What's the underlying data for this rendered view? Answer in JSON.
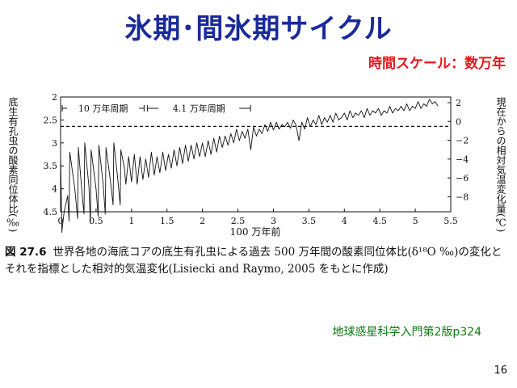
{
  "slide": {
    "title": "氷期･間氷期サイクル",
    "timescale": "時間スケール：数万年",
    "caption_fig": "図 27.6",
    "caption_text": "世界各地の海底コアの底生有孔虫による過去 500 万年間の酸素同位体比(δ¹⁸O ‰)の変化とそれを指標とした相対的気温変化(Lisiecki and Raymo, 2005 をもとに作成)",
    "source": "地球惑星科学入門第2版p324",
    "page_number": "16"
  },
  "chart_data": {
    "type": "line",
    "xlabel": "100 万年前",
    "ylabel_left": "底生有孔虫の酸素同位体比(‰)",
    "ylabel_right": "現在からの相対気温変化量(℃)",
    "xlim": [
      0,
      5.5
    ],
    "ylim_left": [
      4.5,
      2
    ],
    "y_inverted": true,
    "ylim_right": [
      -9.6,
      2.6
    ],
    "x_ticks": [
      "0",
      "0.5",
      "1",
      "1.5",
      "2",
      "2.5",
      "3",
      "3.5",
      "4",
      "4.5",
      "5",
      "5.5"
    ],
    "y_ticks_left": [
      "2",
      "2.5",
      "3",
      "3.5",
      "4",
      "4.5"
    ],
    "y_ticks_right": [
      "2",
      "0",
      "−2",
      "−4",
      "−6",
      "−8"
    ],
    "reference_line": {
      "y": 2.64,
      "style": "dashed"
    },
    "annotations": [
      {
        "label": "10 万年周期",
        "from": 0,
        "to": 1.2
      },
      {
        "label": "4.1 万年周期",
        "from": 1.2,
        "to": 2.7
      }
    ],
    "series": [
      {
        "x": [
          0,
          0.018,
          0.02,
          0.05,
          0.1,
          0.12,
          0.13,
          0.2,
          0.24,
          0.25,
          0.3,
          0.33,
          0.34,
          0.4,
          0.42,
          0.43,
          0.5,
          0.53,
          0.54,
          0.6,
          0.63,
          0.64,
          0.7,
          0.74,
          0.75,
          0.8,
          0.84,
          0.85,
          0.9,
          0.92,
          0.96,
          1.0,
          1.04,
          1.08,
          1.12,
          1.16,
          1.2,
          1.24,
          1.28,
          1.32,
          1.36,
          1.4,
          1.44,
          1.48,
          1.52,
          1.56,
          1.6,
          1.64,
          1.68,
          1.72,
          1.76,
          1.8,
          1.84,
          1.88,
          1.92,
          1.96,
          2.0,
          2.04,
          2.08,
          2.12,
          2.16,
          2.2,
          2.24,
          2.28,
          2.32,
          2.36,
          2.4,
          2.44,
          2.48,
          2.52,
          2.56,
          2.6,
          2.64,
          2.68,
          2.72,
          2.76,
          2.8,
          2.84,
          2.88,
          2.92,
          2.96,
          3.0,
          3.04,
          3.08,
          3.12,
          3.16,
          3.2,
          3.24,
          3.28,
          3.32,
          3.36,
          3.4,
          3.44,
          3.48,
          3.52,
          3.56,
          3.6,
          3.64,
          3.68,
          3.72,
          3.76,
          3.8,
          3.84,
          3.88,
          3.92,
          3.96,
          4.0,
          4.04,
          4.08,
          4.12,
          4.16,
          4.2,
          4.24,
          4.28,
          4.32,
          4.36,
          4.4,
          4.44,
          4.48,
          4.52,
          4.56,
          4.6,
          4.64,
          4.68,
          4.72,
          4.76,
          4.8,
          4.84,
          4.88,
          4.92,
          4.96,
          5.0,
          5.04,
          5.08,
          5.12,
          5.16,
          5.2,
          5.24,
          5.28,
          5.32
        ],
        "y": [
          3.25,
          4.95,
          4.9,
          4.5,
          4.15,
          4.7,
          3.2,
          4.0,
          4.65,
          3.1,
          4.05,
          4.55,
          3.0,
          3.95,
          4.75,
          3.15,
          4.0,
          4.6,
          3.05,
          3.9,
          4.55,
          3.1,
          3.8,
          4.35,
          3.0,
          3.7,
          4.35,
          3.15,
          3.55,
          3.9,
          3.3,
          3.85,
          3.25,
          3.9,
          3.3,
          3.8,
          3.35,
          3.75,
          3.2,
          3.7,
          3.3,
          3.65,
          3.2,
          3.6,
          3.25,
          3.55,
          3.15,
          3.5,
          3.1,
          3.45,
          3.05,
          3.4,
          3.05,
          3.35,
          3.0,
          3.3,
          3.0,
          3.3,
          2.95,
          3.25,
          2.9,
          3.2,
          2.85,
          3.1,
          2.85,
          3.05,
          2.8,
          3.0,
          2.7,
          2.95,
          2.75,
          2.9,
          2.7,
          3.15,
          2.65,
          2.85,
          2.7,
          2.8,
          2.6,
          2.75,
          2.55,
          2.72,
          2.55,
          2.7,
          2.6,
          2.65,
          2.55,
          2.68,
          2.5,
          2.62,
          2.95,
          2.55,
          2.7,
          2.45,
          2.65,
          2.5,
          2.6,
          2.4,
          2.6,
          2.45,
          2.55,
          2.4,
          2.55,
          2.35,
          2.5,
          2.45,
          2.35,
          2.5,
          2.3,
          2.45,
          2.35,
          2.4,
          2.3,
          2.45,
          2.25,
          2.4,
          2.3,
          2.35,
          2.25,
          2.4,
          2.3,
          2.35,
          2.2,
          2.35,
          2.25,
          2.3,
          2.2,
          2.3,
          2.15,
          2.3,
          2.2,
          2.25,
          2.1,
          2.25,
          2.15,
          2.2,
          2.05,
          2.15,
          2.1,
          2.2
        ]
      }
    ]
  }
}
